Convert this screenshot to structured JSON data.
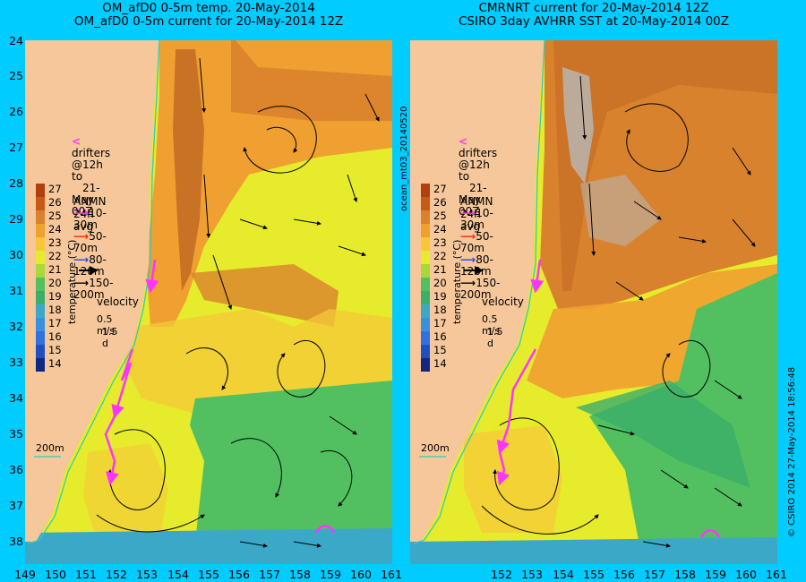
{
  "titles": {
    "left_line1": "OM_afD0 0-5m temp. 20-May-2014",
    "left_line2": "OM_afD0 0-5m current for 20-May-2014 12Z",
    "right_line1": "CMRNRT current for 20-May-2014 12Z",
    "right_line2": "CSIRO 3day AVHRR SST at 20-May-2014 00Z"
  },
  "axes": {
    "y_ticks": [
      "24",
      "25",
      "26",
      "27",
      "28",
      "29",
      "30",
      "31",
      "32",
      "33",
      "34",
      "35",
      "36",
      "37",
      "38"
    ],
    "x_ticks_left": [
      "149",
      "150",
      "151",
      "152",
      "153",
      "154",
      "155",
      "156",
      "157",
      "158",
      "159",
      "160",
      "161"
    ],
    "x_ticks_right": [
      "152",
      "153",
      "154",
      "155",
      "156",
      "157",
      "158",
      "159",
      "160",
      "161"
    ]
  },
  "colorbar": {
    "label": "temperature (°C)",
    "ticks": [
      "27",
      "26",
      "25",
      "24",
      "23",
      "22",
      "21",
      "20",
      "19",
      "18",
      "17",
      "16",
      "15",
      "14"
    ]
  },
  "legend": {
    "drifters_line1": "drifters @12h to",
    "drifters_line2": "21-May 00Z",
    "anmn_title": "ANMN 24h avg",
    "items": [
      {
        "label": "10-30m",
        "color": "#ff33ff"
      },
      {
        "label": "50-70m",
        "color": "#ff2200"
      },
      {
        "label": "80-120m",
        "color": "#2244ff"
      },
      {
        "label": "150-200m",
        "color": "#000000"
      }
    ],
    "velocity_title": "velocity",
    "velocity_scale": "0.5 m/s",
    "velocity_days": "1.5 d",
    "isobath": "200m"
  },
  "side_text": {
    "left": "ocean_mt03_20140520",
    "right": "© CSIRO 2014  27-May-2014 18:56:48"
  },
  "colors": {
    "background": "#00ccff",
    "land": "#f5c79a",
    "warm": "#d9822e",
    "orange": "#f0a030",
    "yellow_orange": "#f6c838",
    "yellow": "#e6ec2c",
    "green": "#52c060",
    "cool": "#3ca8c8",
    "drifter": "#ff33ff"
  }
}
